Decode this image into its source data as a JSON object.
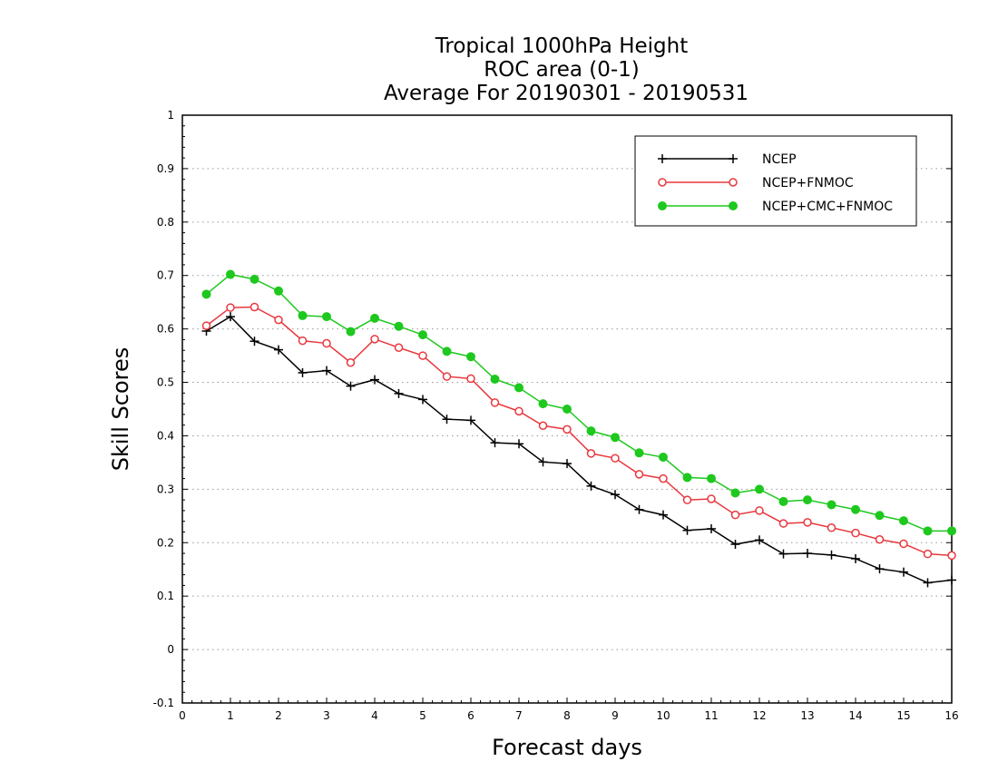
{
  "chart_data": {
    "type": "line",
    "title": [
      "Tropical 1000hPa Height",
      "ROC area (0-1)",
      "Average For 20190301 - 20190531"
    ],
    "xlabel": "Forecast days",
    "ylabel": "Skill Scores",
    "xlim": [
      0,
      16
    ],
    "ylim": [
      -0.1,
      1
    ],
    "xticks": [
      "0",
      "1",
      "2",
      "3",
      "4",
      "5",
      "6",
      "7",
      "8",
      "9",
      "10",
      "11",
      "12",
      "13",
      "14",
      "15",
      "16"
    ],
    "yticks": [
      "-0.1",
      "0",
      "0.1",
      "0.2",
      "0.3",
      "0.4",
      "0.5",
      "0.6",
      "0.7",
      "0.8",
      "0.9",
      "1"
    ],
    "grid": "horizontal dotted",
    "legend_position": "top-right",
    "x": [
      0.5,
      1,
      1.5,
      2,
      2.5,
      3,
      3.5,
      4,
      4.5,
      5,
      5.5,
      6,
      6.5,
      7,
      7.5,
      8,
      8.5,
      9,
      9.5,
      10,
      10.5,
      11,
      11.5,
      12,
      12.5,
      13,
      13.5,
      14,
      14.5,
      15,
      15.5,
      16
    ],
    "series": [
      {
        "name": "NCEP",
        "color": "#000000",
        "marker": "plus",
        "values": [
          0.596,
          0.623,
          0.577,
          0.561,
          0.518,
          0.522,
          0.493,
          0.505,
          0.479,
          0.468,
          0.431,
          0.429,
          0.387,
          0.385,
          0.351,
          0.348,
          0.306,
          0.29,
          0.262,
          0.252,
          0.223,
          0.226,
          0.197,
          0.205,
          0.179,
          0.18,
          0.177,
          0.17,
          0.151,
          0.145,
          0.125,
          0.13
        ]
      },
      {
        "name": "NCEP+FNMOC",
        "color": "#e8383d",
        "marker": "open-circle",
        "values": [
          0.606,
          0.64,
          0.641,
          0.617,
          0.578,
          0.573,
          0.537,
          0.581,
          0.565,
          0.55,
          0.511,
          0.507,
          0.462,
          0.446,
          0.419,
          0.412,
          0.367,
          0.358,
          0.328,
          0.32,
          0.28,
          0.282,
          0.252,
          0.26,
          0.236,
          0.238,
          0.228,
          0.218,
          0.206,
          0.198,
          0.179,
          0.176
        ]
      },
      {
        "name": "NCEP+CMC+FNMOC",
        "color": "#1ec81e",
        "marker": "filled-circle",
        "values": [
          0.665,
          0.702,
          0.693,
          0.671,
          0.625,
          0.623,
          0.595,
          0.62,
          0.605,
          0.589,
          0.558,
          0.548,
          0.506,
          0.49,
          0.46,
          0.45,
          0.409,
          0.397,
          0.368,
          0.36,
          0.322,
          0.32,
          0.293,
          0.3,
          0.277,
          0.28,
          0.271,
          0.262,
          0.251,
          0.241,
          0.222,
          0.222
        ]
      }
    ]
  }
}
